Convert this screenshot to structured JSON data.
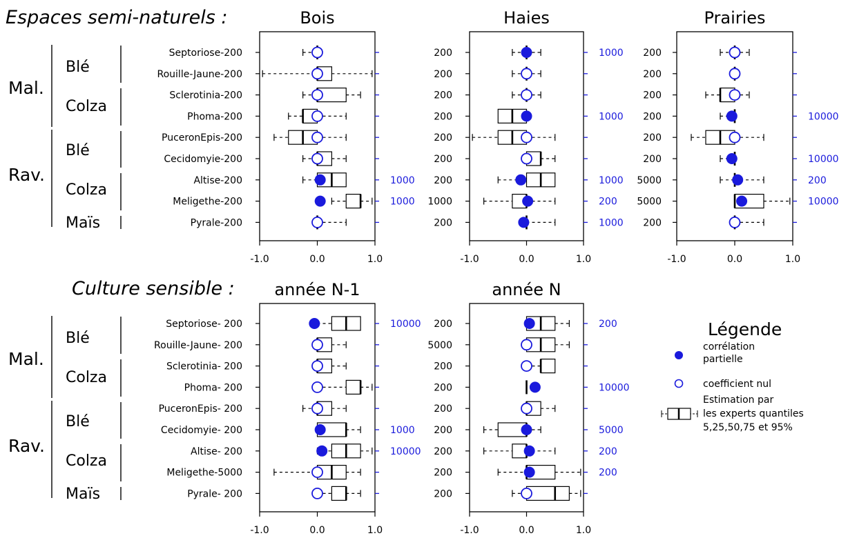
{
  "sections": [
    {
      "title": "Espaces semi-naturels :"
    },
    {
      "title": "Culture sensible :"
    }
  ],
  "groups": {
    "pest_class": [
      "Mal.",
      "Rav."
    ],
    "crops": [
      "Blé",
      "Colza",
      "Blé",
      "Colza",
      "Maïs"
    ]
  },
  "legend": {
    "title": "Légende",
    "partial_corr": "corrélation partielle",
    "partial_corr_lines": [
      "corrélation",
      "partielle"
    ],
    "null_coef": "coefficient nul",
    "expert": "Estimation par les experts quantiles 5,25,50,75 et 95%",
    "expert_lines": [
      "Estimation par",
      "les experts quantiles",
      "5,25,50,75 et 95%"
    ]
  },
  "colors": {
    "data_blue": "#1a1adc",
    "axis": "#000000"
  },
  "chart_data": [
    {
      "type": "boxplot",
      "title": "Bois",
      "xlim": [
        -1,
        1
      ],
      "xticks": [
        "-1.0",
        "0.0",
        "1.0"
      ],
      "row_labels": [
        "Septoriose-200",
        "Rouille-Jaune-200",
        "Sclerotinia-200",
        "Phoma-200",
        "PuceronEpis-200",
        "Cecidomyie-200",
        "Altise-200",
        "Meligethe-200",
        "Pyrale-200"
      ],
      "right_labels": [
        "",
        "",
        "",
        "",
        "",
        "",
        "1000",
        "1000",
        ""
      ],
      "quantiles": [
        [
          -0.25,
          0,
          0,
          0,
          0
        ],
        [
          -0.95,
          0,
          0,
          0.25,
          0.95
        ],
        [
          -0.25,
          0,
          0,
          0.5,
          0.75
        ],
        [
          -0.5,
          -0.25,
          -0.25,
          0,
          0.5
        ],
        [
          -0.75,
          -0.5,
          -0.25,
          0,
          0.5
        ],
        [
          -0.25,
          0,
          0,
          0.25,
          0.5
        ],
        [
          -0.25,
          0,
          0.25,
          0.5,
          0.5
        ],
        [
          0.25,
          0.5,
          0.75,
          0.75,
          0.95
        ],
        [
          0,
          0,
          0,
          0,
          0.5
        ]
      ],
      "partial_correlation": [
        null,
        null,
        null,
        null,
        null,
        null,
        0.05,
        0.05,
        null
      ]
    },
    {
      "type": "boxplot",
      "title": "Haies",
      "xlim": [
        -1,
        1
      ],
      "xticks": [
        "-1.0",
        "0.0",
        "1.0"
      ],
      "row_labels": [
        "200",
        "200",
        "200",
        "200",
        "200",
        "200",
        "200",
        "1000",
        "200"
      ],
      "right_labels": [
        "1000",
        "",
        "",
        "1000",
        "",
        "",
        "1000",
        "200",
        "1000"
      ],
      "quantiles": [
        [
          -0.25,
          0,
          0,
          0,
          0.25
        ],
        [
          -0.25,
          0,
          0,
          0,
          0.25
        ],
        [
          -0.25,
          0,
          0,
          0,
          0.25
        ],
        [
          -0.5,
          -0.5,
          -0.25,
          0,
          0
        ],
        [
          -0.95,
          -0.5,
          -0.25,
          0,
          0.5
        ],
        [
          0,
          0,
          0.25,
          0.25,
          0.5
        ],
        [
          -0.5,
          0,
          0.25,
          0.5,
          0.5
        ],
        [
          -0.75,
          -0.25,
          0,
          0,
          0.5
        ],
        [
          0,
          0,
          0,
          0,
          0.5
        ]
      ],
      "partial_correlation": [
        0.0,
        null,
        null,
        0.0,
        null,
        null,
        -0.1,
        0.02,
        -0.05
      ]
    },
    {
      "type": "boxplot",
      "title": "Prairies",
      "xlim": [
        -1,
        1
      ],
      "xticks": [
        "-1.0",
        "0.0",
        "1.0"
      ],
      "row_labels": [
        "200",
        "200",
        "200",
        "200",
        "200",
        "200",
        "5000",
        "5000",
        "200"
      ],
      "right_labels": [
        "",
        "",
        "",
        "10000",
        "",
        "10000",
        "200",
        "10000",
        ""
      ],
      "quantiles": [
        [
          -0.25,
          0,
          0,
          0,
          0.25
        ],
        [
          0,
          0,
          0,
          0,
          0
        ],
        [
          -0.5,
          -0.25,
          -0.25,
          0,
          0.25
        ],
        [
          -0.25,
          0,
          0,
          0,
          0
        ],
        [
          -0.75,
          -0.5,
          -0.25,
          0,
          0.5
        ],
        [
          -0.25,
          0,
          0,
          0,
          0
        ],
        [
          -0.25,
          0,
          0,
          0,
          0.5
        ],
        [
          0,
          0,
          0,
          0.5,
          0.95
        ],
        [
          0,
          0,
          0,
          0,
          0.5
        ]
      ],
      "partial_correlation": [
        null,
        null,
        null,
        -0.05,
        null,
        -0.05,
        0.05,
        0.12,
        null
      ]
    },
    {
      "type": "boxplot",
      "title": "année N-1",
      "xlim": [
        -1,
        1
      ],
      "xticks": [
        "-1.0",
        "0.0",
        "1.0"
      ],
      "row_labels": [
        "Septoriose- 200",
        "Rouille-Jaune- 200",
        "Sclerotinia- 200",
        "Phoma- 200",
        "PuceronEpis- 200",
        "Cecidomyie- 200",
        "Altise- 200",
        "Meligethe-5000",
        "Pyrale- 200"
      ],
      "right_labels": [
        "10000",
        "",
        "",
        "",
        "",
        "1000",
        "10000",
        "",
        ""
      ],
      "quantiles": [
        [
          0,
          0.25,
          0.5,
          0.75,
          0.75
        ],
        [
          0,
          0,
          0,
          0.25,
          0.5
        ],
        [
          0,
          0,
          0,
          0.25,
          0.5
        ],
        [
          0,
          0.5,
          0.75,
          0.75,
          0.95
        ],
        [
          -0.25,
          0,
          0,
          0.25,
          0.5
        ],
        [
          0,
          0,
          0.5,
          0.5,
          0.75
        ],
        [
          0,
          0.25,
          0.5,
          0.75,
          0.95
        ],
        [
          -0.75,
          0,
          0.25,
          0.5,
          0.75
        ],
        [
          0,
          0.25,
          0.5,
          0.5,
          0.75
        ]
      ],
      "partial_correlation": [
        -0.05,
        null,
        null,
        null,
        null,
        0.05,
        0.08,
        null,
        null
      ]
    },
    {
      "type": "boxplot",
      "title": "année N",
      "xlim": [
        -1,
        1
      ],
      "xticks": [
        "-1.0",
        "0.0",
        "1.0"
      ],
      "row_labels": [
        "200",
        "5000",
        "200",
        "200",
        "200",
        "200",
        "200",
        "200",
        "200"
      ],
      "right_labels": [
        "200",
        "",
        "",
        "10000",
        "",
        "5000",
        "200",
        "200",
        ""
      ],
      "quantiles": [
        [
          0,
          0,
          0.25,
          0.5,
          0.75
        ],
        [
          0,
          0,
          0.25,
          0.5,
          0.75
        ],
        [
          0,
          0.25,
          0.25,
          0.5,
          0.5
        ],
        [
          0,
          0,
          0,
          0,
          0
        ],
        [
          0,
          0,
          0,
          0.25,
          0.5
        ],
        [
          -0.75,
          -0.5,
          0,
          0,
          0.25
        ],
        [
          -0.75,
          -0.25,
          0,
          0,
          0.5
        ],
        [
          -0.5,
          0,
          0,
          0.5,
          0.95
        ],
        [
          -0.25,
          0,
          0.5,
          0.75,
          0.95
        ]
      ],
      "partial_correlation": [
        0.05,
        null,
        null,
        0.15,
        null,
        0.0,
        0.05,
        0.05,
        null
      ]
    }
  ]
}
